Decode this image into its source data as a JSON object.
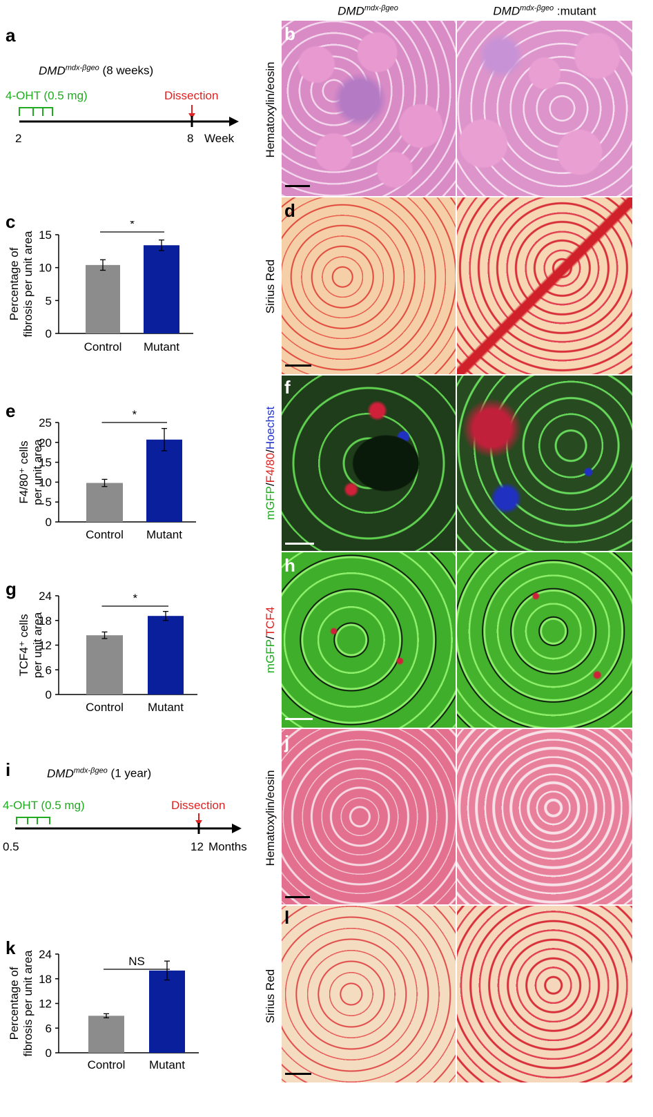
{
  "columns": {
    "left": {
      "base": "DMD",
      "sup": "mdx-βgeo",
      "suffix": ""
    },
    "right": {
      "base": "DMD",
      "sup": "mdx-βgeo",
      "suffix": " :mutant"
    }
  },
  "timelines": [
    {
      "panel": "a",
      "title_base": "DMD",
      "title_sup": "mdx-βgeo",
      "title_suffix": " (8 weeks)",
      "treatment": "4-OHT (0.5 mg)",
      "event": "Dissection",
      "start_label": "2",
      "end_label": "8",
      "unit": "Week",
      "treatment_color": "#22bb22",
      "event_color": "#dd2222"
    },
    {
      "panel": "i",
      "title_base": "DMD",
      "title_sup": "mdx-βgeo",
      "title_suffix": " (1 year)",
      "treatment": "4-OHT (0.5 mg)",
      "event": "Dissection",
      "start_label": "0.5",
      "end_label": "12",
      "unit": "Months",
      "treatment_color": "#22bb22",
      "event_color": "#dd2222"
    }
  ],
  "chart_data": [
    {
      "panel": "c",
      "type": "bar",
      "categories": [
        "Control",
        "Mutant"
      ],
      "values": [
        10.4,
        13.4
      ],
      "errors": [
        0.8,
        0.8
      ],
      "ylabel_lines": [
        "Percentage of",
        "fibrosis per unit area"
      ],
      "yticks": [
        0,
        5,
        10,
        15
      ],
      "ylim": [
        0,
        15
      ],
      "significance": "*",
      "colors": [
        "#8c8c8c",
        "#0a1f9c"
      ]
    },
    {
      "panel": "e",
      "type": "bar",
      "categories": [
        "Control",
        "Mutant"
      ],
      "values": [
        9.8,
        20.7
      ],
      "errors": [
        0.9,
        2.8
      ],
      "ylabel_lines": [
        "F4/80⁺ cells",
        "per unit area"
      ],
      "yticks": [
        0,
        5,
        10,
        15,
        20,
        25
      ],
      "ylim": [
        0,
        25
      ],
      "significance": "*",
      "colors": [
        "#8c8c8c",
        "#0a1f9c"
      ]
    },
    {
      "panel": "g",
      "type": "bar",
      "categories": [
        "Control",
        "Mutant"
      ],
      "values": [
        14.4,
        19.1
      ],
      "errors": [
        0.8,
        1.1
      ],
      "ylabel_lines": [
        "TCF4⁺ cells",
        "per unit area"
      ],
      "yticks": [
        0,
        6,
        12,
        18,
        24
      ],
      "ylim": [
        0,
        24
      ],
      "significance": "*",
      "colors": [
        "#8c8c8c",
        "#0a1f9c"
      ]
    },
    {
      "panel": "k",
      "type": "bar",
      "categories": [
        "Control",
        "Mutant"
      ],
      "values": [
        9.0,
        20.0
      ],
      "errors": [
        0.5,
        2.3
      ],
      "ylabel_lines": [
        "Percentage of",
        "fibrosis per unit area"
      ],
      "yticks": [
        0,
        6,
        12,
        18,
        24
      ],
      "ylim": [
        0,
        24
      ],
      "significance": "NS",
      "colors": [
        "#8c8c8c",
        "#0a1f9c"
      ]
    }
  ],
  "image_rows": [
    {
      "panel": "b",
      "stain_label": "Hematoxylin/eosin",
      "stain": "he"
    },
    {
      "panel": "d",
      "stain_label": "Sirius Red",
      "stain": "sirius"
    },
    {
      "panel": "f",
      "stain_label_parts": [
        "mGFP",
        "/",
        "F4/80",
        "/",
        "Hoechst"
      ],
      "stain": "gfp-f480"
    },
    {
      "panel": "h",
      "stain_label_parts": [
        "mGFP",
        "/",
        "TCF4"
      ],
      "stain": "gfp-tcf4"
    },
    {
      "panel": "j",
      "stain_label": "Hematoxylin/eosin",
      "stain": "he2"
    },
    {
      "panel": "l",
      "stain_label": "Sirius Red",
      "stain": "sirius2"
    }
  ],
  "colors": {
    "green_label": "#1faa1f",
    "red_label": "#dd2222",
    "blue_label": "#2233cc"
  }
}
